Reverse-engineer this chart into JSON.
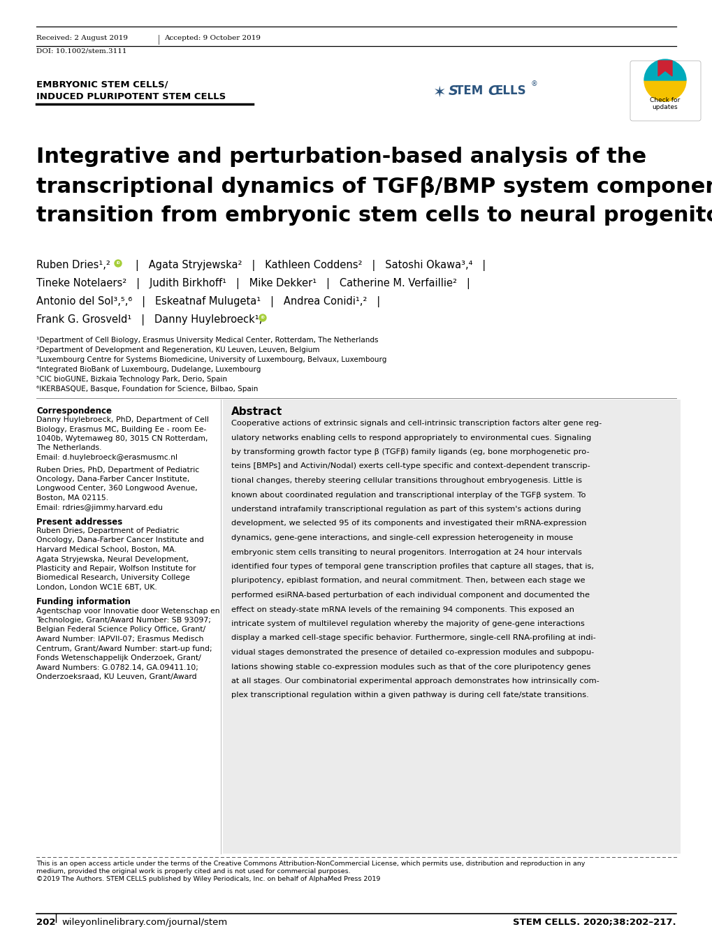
{
  "bg_color": "#ffffff",
  "received_text": "Received: 2 August 2019",
  "accepted_text": "Accepted: 9 October 2019",
  "doi_text": "DOI: 10.1002/stem.3111",
  "section_line1": "EMBRYONIC STEM CELLS/",
  "section_line2": "INDUCED PLURIPOTENT STEM CELLS",
  "main_title_line1": "Integrative and perturbation-based analysis of the",
  "main_title_line2": "transcriptional dynamics of TGFβ/BMP system components in",
  "main_title_line3": "transition from embryonic stem cells to neural progenitors",
  "affil1": "¹Department of Cell Biology, Erasmus University Medical Center, Rotterdam, The Netherlands",
  "affil2": "²Department of Development and Regeneration, KU Leuven, Leuven, Belgium",
  "affil3": "³Luxembourg Centre for Systems Biomedicine, University of Luxembourg, Belvaux, Luxembourg",
  "affil4": "⁴Integrated BioBank of Luxembourg, Dudelange, Luxembourg",
  "affil5": "⁵CIC bioGUNE, Bizkaia Technology Park, Derio, Spain",
  "affil6": "⁶IKERBASQUE, Basque, Foundation for Science, Bilbao, Spain",
  "corr_title": "Correspondence",
  "corr_body1_line1": "Danny Huylebroeck, PhD, Department of Cell",
  "corr_body1_line2": "Biology, Erasmus MC, Building Ee - room Ee-",
  "corr_body1_line3": "1040b, Wytemaweg 80, 3015 CN Rotterdam,",
  "corr_body1_line4": "The Netherlands.",
  "corr_body1_line5": "Email: d.huylebroeck@erasmusmc.nl",
  "corr_body2_line1": "Ruben Dries, PhD, Department of Pediatric",
  "corr_body2_line2": "Oncology, Dana-Farber Cancer Institute,",
  "corr_body2_line3": "Longwood Center, 360 Longwood Avenue,",
  "corr_body2_line4": "Boston, MA 02115.",
  "corr_body2_line5": "Email: rdries@jimmy.harvard.edu",
  "present_title": "Present addresses",
  "present_lines": [
    "Ruben Dries, Department of Pediatric",
    "Oncology, Dana-Farber Cancer Institute and",
    "Harvard Medical School, Boston, MA.",
    "Agata Stryjewska, Neural Development,",
    "Plasticity and Repair, Wolfson Institute for",
    "Biomedical Research, University College",
    "London, London WC1E 6BT, UK."
  ],
  "funding_title": "Funding information",
  "funding_lines": [
    "Agentschap voor Innovatie door Wetenschap en",
    "Technologie, Grant/Award Number: SB 93097;",
    "Belgian Federal Science Policy Office, Grant/",
    "Award Number: IAPVII-07; Erasmus Medisch",
    "Centrum, Grant/Award Number: start-up fund;",
    "Fonds Wetenschappelijk Onderzoek, Grant/",
    "Award Numbers: G.0782.14, GA.09411.10;",
    "Onderzoeksraad, KU Leuven, Grant/Award"
  ],
  "abstract_title": "Abstract",
  "abstract_lines": [
    "Cooperative actions of extrinsic signals and cell-intrinsic transcription factors alter gene reg-",
    "ulatory networks enabling cells to respond appropriately to environmental cues. Signaling",
    "by transforming growth factor type β (TGFβ) family ligands (eg, bone morphogenetic pro-",
    "teins [BMPs] and Activin/Nodal) exerts cell-type specific and context-dependent transcrip-",
    "tional changes, thereby steering cellular transitions throughout embryogenesis. Little is",
    "known about coordinated regulation and transcriptional interplay of the TGFβ system. To",
    "understand intrafamily transcriptional regulation as part of this system's actions during",
    "development, we selected 95 of its components and investigated their mRNA-expression",
    "dynamics, gene-gene interactions, and single-cell expression heterogeneity in mouse",
    "embryonic stem cells transiting to neural progenitors. Interrogation at 24 hour intervals",
    "identified four types of temporal gene transcription profiles that capture all stages, that is,",
    "pluripotency, epiblast formation, and neural commitment. Then, between each stage we",
    "performed esiRNA-based perturbation of each individual component and documented the",
    "effect on steady-state mRNA levels of the remaining 94 components. This exposed an",
    "intricate system of multilevel regulation whereby the majority of gene-gene interactions",
    "display a marked cell-stage specific behavior. Furthermore, single-cell RNA-profiling at indi-",
    "vidual stages demonstrated the presence of detailed co-expression modules and subpopu-",
    "lations showing stable co-expression modules such as that of the core pluripotency genes",
    "at all stages. Our combinatorial experimental approach demonstrates how intrinsically com-",
    "plex transcriptional regulation within a given pathway is during cell fate/state transitions."
  ],
  "footer_line1": "This is an open access article under the terms of the Creative Commons Attribution-NonCommercial License, which permits use, distribution and reproduction in any",
  "footer_line2": "medium, provided the original work is properly cited and is not used for commercial purposes.",
  "footer_line3": "©2019 The Authors. STEM CELLS published by Wiley Periodicals, Inc. on behalf of AlphaMed Press 2019",
  "page_num": "202",
  "footer_journal": "wileyonlinelibrary.com/journal/stem",
  "footer_right": "STEM CELLS. 2020;38:202–217.",
  "abstract_bg": "#ebebeb"
}
